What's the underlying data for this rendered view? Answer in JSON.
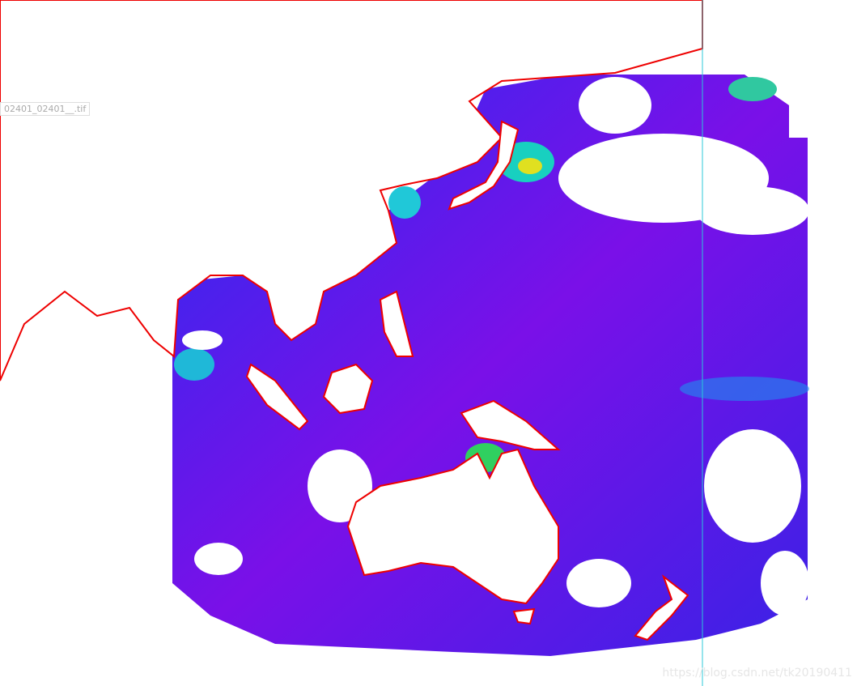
{
  "layer_label": "02401_02401__.tif",
  "watermark": "https://blog.csdn.net/tk20190411"
}
